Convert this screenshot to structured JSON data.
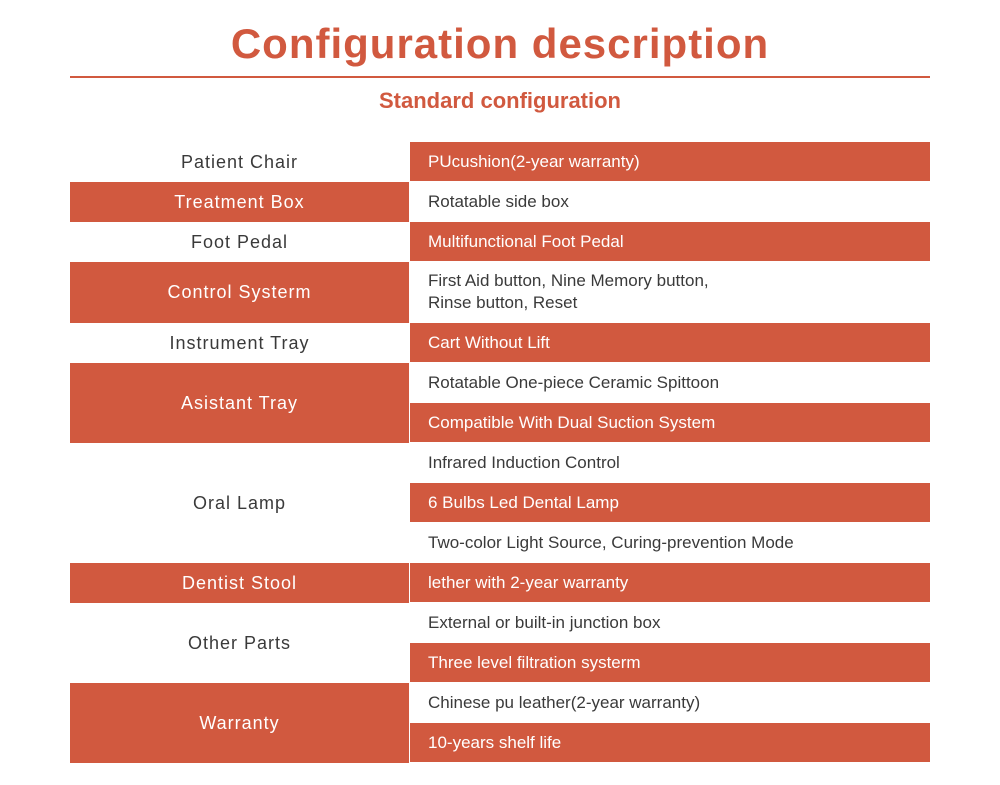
{
  "colors": {
    "accent": "#d1593f",
    "text_dark": "#3a3a3a",
    "white": "#ffffff"
  },
  "title": "Configuration description",
  "subtitle": "Standard configuration",
  "rows": [
    {
      "label": "Patient Chair",
      "left_style": "white",
      "details": [
        {
          "text": "PUcushion(2-year warranty)",
          "style": "red"
        }
      ]
    },
    {
      "label": "Treatment Box",
      "left_style": "red",
      "details": [
        {
          "text": "Rotatable side box",
          "style": "white"
        }
      ]
    },
    {
      "label": "Foot Pedal",
      "left_style": "white",
      "details": [
        {
          "text": "Multifunctional Foot Pedal",
          "style": "red"
        }
      ]
    },
    {
      "label": "Control Systerm",
      "left_style": "red",
      "details": [
        {
          "text": "First Aid button, Nine Memory button,\nRinse button, Reset",
          "style": "white"
        }
      ]
    },
    {
      "label": "Instrument Tray",
      "left_style": "white",
      "details": [
        {
          "text": "Cart Without Lift",
          "style": "red"
        }
      ]
    },
    {
      "label": "Asistant Tray",
      "left_style": "red",
      "details": [
        {
          "text": "Rotatable One-piece Ceramic Spittoon",
          "style": "white"
        },
        {
          "text": "Compatible With Dual Suction System",
          "style": "red"
        }
      ]
    },
    {
      "label": "Oral Lamp",
      "left_style": "white",
      "details": [
        {
          "text": "Infrared Induction Control",
          "style": "white"
        },
        {
          "text": "6 Bulbs Led Dental Lamp",
          "style": "red"
        },
        {
          "text": "Two-color Light Source, Curing-prevention Mode",
          "style": "white"
        }
      ]
    },
    {
      "label": "Dentist Stool",
      "left_style": "red",
      "details": [
        {
          "text": "lether with 2-year warranty",
          "style": "red"
        }
      ]
    },
    {
      "label": "Other Parts",
      "left_style": "white",
      "details": [
        {
          "text": "External or built-in junction box",
          "style": "white"
        },
        {
          "text": "Three level filtration systerm",
          "style": "red"
        }
      ]
    },
    {
      "label": "Warranty",
      "left_style": "red",
      "details": [
        {
          "text": "Chinese pu leather(2-year warranty)",
          "style": "white"
        },
        {
          "text": "10-years shelf life",
          "style": "red"
        }
      ]
    }
  ]
}
